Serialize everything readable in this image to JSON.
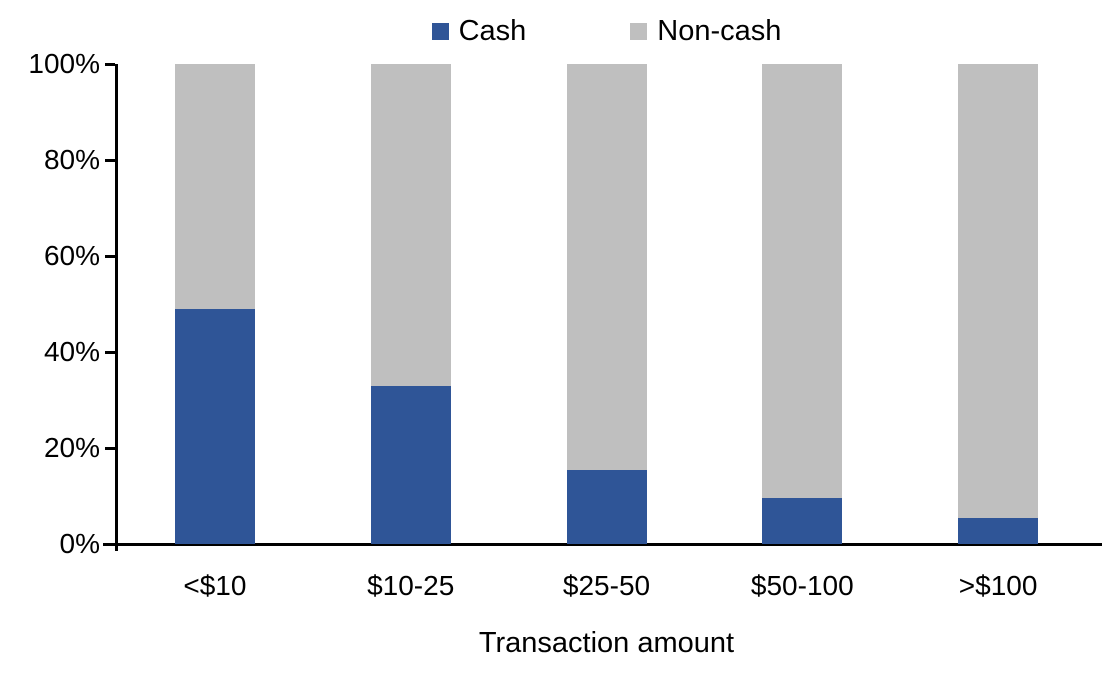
{
  "chart_data": {
    "type": "bar",
    "stacked": true,
    "stacked_to_100_percent": true,
    "title": "",
    "xlabel": "Transaction amount",
    "ylabel": "",
    "categories": [
      "<$10",
      "$10-25",
      "$25-50",
      "$50-100",
      ">$100"
    ],
    "series": [
      {
        "name": "Cash",
        "color": "#2F5597",
        "values": [
          49,
          33,
          15.5,
          9.5,
          5.5
        ]
      },
      {
        "name": "Non-cash",
        "color": "#BFBFBF",
        "values": [
          51,
          67,
          84.5,
          90.5,
          94.5
        ]
      }
    ],
    "ylim": [
      0,
      100
    ],
    "yticks": [
      "0%",
      "20%",
      "40%",
      "60%",
      "80%",
      "100%"
    ],
    "ytick_values": [
      0,
      20,
      40,
      60,
      80,
      100
    ],
    "grid": false,
    "legend_position": "top-center"
  },
  "colors": {
    "cash": "#2F5597",
    "noncash": "#BFBFBF",
    "axis": "#000000",
    "text": "#000000",
    "background": "#FFFFFF"
  }
}
